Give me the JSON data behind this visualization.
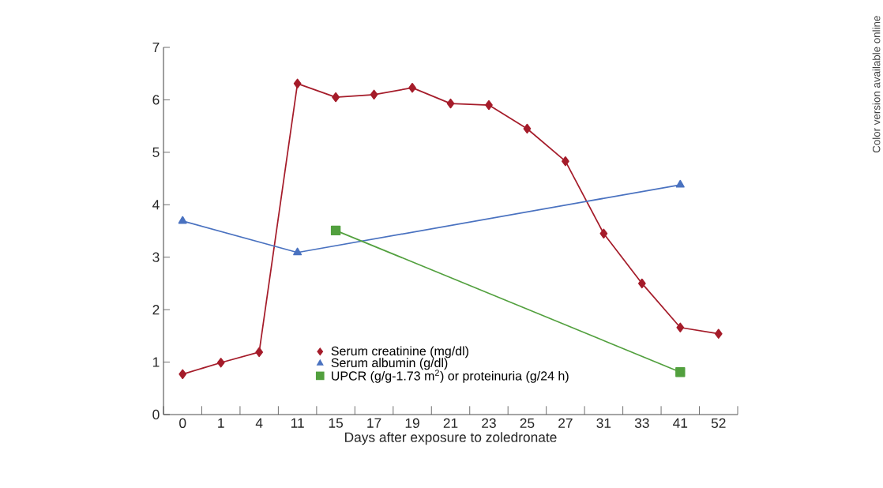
{
  "chart_data": {
    "type": "line",
    "xlabel": "Days after exposure to zoledronate",
    "categories": [
      "0",
      "1",
      "4",
      "11",
      "15",
      "17",
      "19",
      "21",
      "23",
      "25",
      "27",
      "31",
      "33",
      "41",
      "52"
    ],
    "series": [
      {
        "name": "Serum creatinine (mg/dl)",
        "color": "#a51c2a",
        "marker": "diamond",
        "values": [
          0.77,
          0.99,
          1.19,
          6.31,
          6.05,
          6.1,
          6.23,
          5.93,
          5.9,
          5.45,
          4.83,
          3.45,
          2.5,
          1.66,
          1.54
        ]
      },
      {
        "name": "Serum albumin (g/dl)",
        "color": "#4a72c0",
        "marker": "triangle",
        "values": [
          3.69,
          null,
          null,
          3.09,
          null,
          null,
          null,
          null,
          null,
          null,
          null,
          null,
          null,
          4.38,
          null
        ]
      },
      {
        "name": "UPCR (g/g-1.73 m$^{2}$) or proteinuria (g/24 h)",
        "color": "#52a03e",
        "marker": "square",
        "values": [
          null,
          null,
          null,
          null,
          3.51,
          null,
          null,
          null,
          null,
          null,
          null,
          null,
          null,
          0.81,
          null
        ]
      }
    ],
    "ylim": [
      0,
      7
    ],
    "yticks": [
      0,
      1,
      2,
      3,
      4,
      5,
      6,
      7
    ],
    "grid": false,
    "legend": "bottom",
    "annotations": [
      "Color version available online"
    ]
  }
}
